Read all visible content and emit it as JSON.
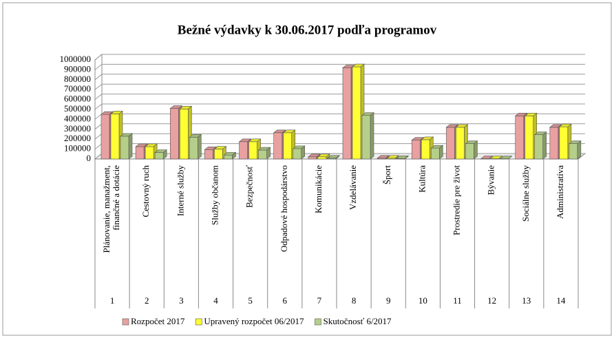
{
  "chart_data": {
    "type": "bar3d",
    "title": "Bežné výdavky k 30.06.2017 podľa programov",
    "categories": [
      "Plánovanie, manažment,\nfinančné a dotácie",
      "Cestovný ruch",
      "Interné služby",
      "Služby občanom",
      "Bezpečnosť",
      "Odpadové hospodárstvo",
      "Komunikácie",
      "Vzdelávanie",
      "Šport",
      "Kultúra",
      "Prostredie pre život",
      "Bývanie",
      "Sociálne služby",
      "Administratíva"
    ],
    "category_numbers": [
      1,
      2,
      3,
      4,
      5,
      6,
      7,
      8,
      9,
      10,
      11,
      12,
      13,
      14
    ],
    "series": [
      {
        "name": "Rozpočet 2017",
        "color": "#e8a0a0",
        "values": [
          450000,
          125000,
          510000,
          95000,
          175000,
          265000,
          22000,
          920000,
          8000,
          190000,
          320000,
          3000,
          435000,
          320000
        ]
      },
      {
        "name": "Upravený rozpočet 06/2017",
        "color": "#ffff33",
        "values": [
          455000,
          125000,
          505000,
          100000,
          175000,
          265000,
          22000,
          930000,
          8000,
          195000,
          320000,
          3000,
          435000,
          325000
        ]
      },
      {
        "name": "Skutočnosť 6/2017",
        "color": "#b5cf8a",
        "values": [
          230000,
          65000,
          220000,
          40000,
          90000,
          105000,
          8000,
          440000,
          5000,
          110000,
          155000,
          2000,
          245000,
          155000
        ]
      }
    ],
    "ylim": [
      0,
      1000000
    ],
    "yticks": [
      0,
      100000,
      200000,
      300000,
      400000,
      500000,
      600000,
      700000,
      800000,
      900000,
      1000000
    ],
    "grid": true,
    "legend": "bottom"
  }
}
